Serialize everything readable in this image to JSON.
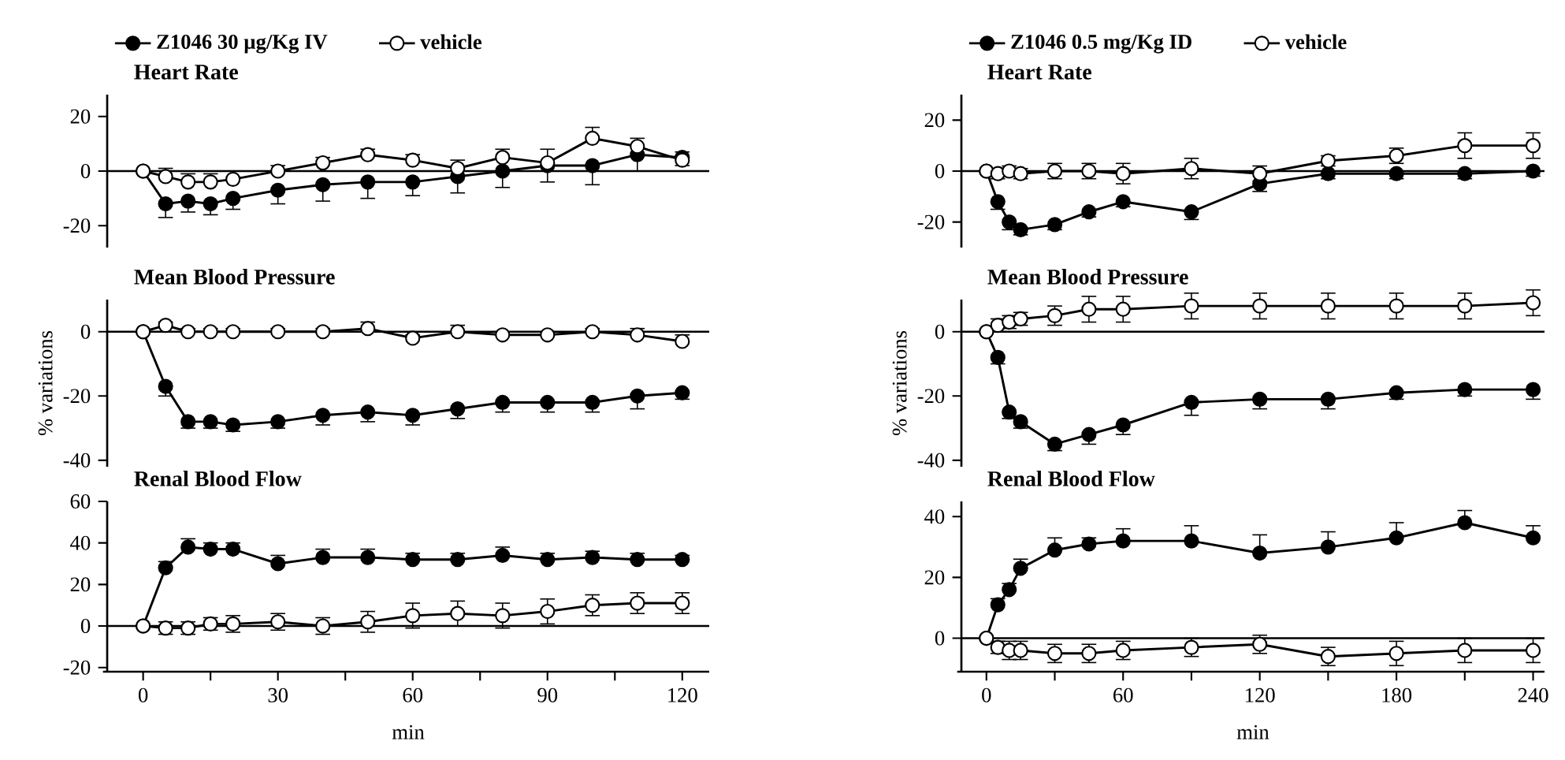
{
  "chart_data": [
    {
      "type": "line",
      "title": "Heart Rate",
      "x": [
        0,
        5,
        10,
        15,
        20,
        30,
        40,
        50,
        60,
        70,
        80,
        90,
        100,
        110,
        120
      ],
      "xlim": [
        -8,
        126
      ],
      "ylim": [
        -28,
        28
      ],
      "yticks": [
        -20,
        0,
        20
      ],
      "tick_labels": "y",
      "marker": "circle",
      "legend": "top",
      "ref_lines": [
        {
          "axis": "y",
          "value": 0
        }
      ],
      "series": [
        {
          "name": "Z1046 30 µg/Kg IV",
          "color": "#000000",
          "values": [
            0,
            -12,
            -11,
            -12,
            -10,
            -7,
            -5,
            -4,
            -4,
            -2,
            0,
            2,
            2,
            6,
            5
          ],
          "errors": [
            null,
            [
              -17,
              -12
            ],
            [
              -15,
              -11
            ],
            [
              -16,
              -12
            ],
            [
              -14,
              -10
            ],
            [
              -12,
              -7
            ],
            [
              -11,
              -5
            ],
            [
              -10,
              -4
            ],
            [
              -9,
              -4
            ],
            [
              -8,
              -2
            ],
            [
              -6,
              0
            ],
            [
              -4,
              2
            ],
            [
              -5,
              2
            ],
            [
              0,
              6
            ],
            [
              2,
              5
            ]
          ]
        },
        {
          "name": "vehicle",
          "color": "#ffffff",
          "values": [
            0,
            -2,
            -4,
            -4,
            -3,
            0,
            3,
            6,
            4,
            1,
            5,
            3,
            12,
            9,
            4
          ],
          "errors": [
            null,
            [
              -2,
              1
            ],
            [
              -4,
              -1
            ],
            [
              -4,
              -1
            ],
            [
              -3,
              0
            ],
            [
              0,
              2
            ],
            [
              3,
              5
            ],
            [
              6,
              8
            ],
            [
              4,
              6
            ],
            [
              1,
              4
            ],
            [
              5,
              8
            ],
            [
              3,
              8
            ],
            [
              12,
              16
            ],
            [
              9,
              12
            ],
            [
              4,
              7
            ]
          ]
        }
      ]
    },
    {
      "type": "line",
      "title": "Mean Blood Pressure",
      "ylabel": "% variations",
      "x": [
        0,
        5,
        10,
        15,
        20,
        30,
        40,
        50,
        60,
        70,
        80,
        90,
        100,
        110,
        120
      ],
      "xlim": [
        -8,
        126
      ],
      "ylim": [
        -42,
        10
      ],
      "yticks": [
        -40,
        -20,
        0
      ],
      "tick_labels": "y",
      "marker": "circle",
      "ref_lines": [
        {
          "axis": "y",
          "value": 0
        }
      ],
      "series": [
        {
          "color": "#000000",
          "values": [
            0,
            -17,
            -28,
            -28,
            -29,
            -28,
            -26,
            -25,
            -26,
            -24,
            -22,
            -22,
            -22,
            -20,
            -19
          ],
          "errors": [
            null,
            [
              -20,
              -17
            ],
            [
              -30,
              -28
            ],
            [
              -30,
              -28
            ],
            [
              -31,
              -29
            ],
            [
              -30,
              -28
            ],
            [
              -29,
              -26
            ],
            [
              -28,
              -25
            ],
            [
              -29,
              -26
            ],
            [
              -27,
              -24
            ],
            [
              -25,
              -22
            ],
            [
              -25,
              -22
            ],
            [
              -25,
              -22
            ],
            [
              -24,
              -20
            ],
            [
              -21,
              -19
            ]
          ]
        },
        {
          "color": "#ffffff",
          "values": [
            0,
            2,
            0,
            0,
            0,
            0,
            0,
            1,
            -2,
            0,
            -1,
            -1,
            0,
            -1,
            -3
          ],
          "errors": [
            null,
            [
              2,
              3
            ],
            [
              0,
              1
            ],
            [
              0,
              1
            ],
            [
              0,
              1
            ],
            [
              0,
              1
            ],
            [
              0,
              1
            ],
            [
              1,
              3
            ],
            [
              -2,
              -1
            ],
            [
              0,
              2
            ],
            [
              -1,
              0
            ],
            [
              -1,
              0
            ],
            [
              0,
              1
            ],
            [
              -1,
              1
            ],
            [
              -3,
              -1
            ]
          ]
        }
      ]
    },
    {
      "type": "line",
      "title": "Renal Blood Flow",
      "xlabel": "min",
      "x": [
        0,
        5,
        10,
        15,
        20,
        30,
        40,
        50,
        60,
        70,
        80,
        90,
        100,
        110,
        120
      ],
      "xlim": [
        -8,
        126
      ],
      "ylim": [
        -22,
        60
      ],
      "yticks": [
        -20,
        0,
        20,
        40,
        60
      ],
      "xticks": [
        0,
        {
          "value": 15,
          "label": null
        },
        30,
        {
          "value": 45,
          "label": null
        },
        60,
        {
          "value": 75,
          "label": null
        },
        90,
        {
          "value": 105,
          "label": null
        },
        120
      ],
      "marker": "circle",
      "ref_lines": [
        {
          "axis": "y",
          "value": 0
        }
      ],
      "series": [
        {
          "color": "#000000",
          "values": [
            0,
            28,
            38,
            37,
            37,
            30,
            33,
            33,
            32,
            32,
            34,
            32,
            33,
            32,
            32
          ],
          "errors": [
            null,
            [
              28,
              31
            ],
            [
              38,
              42
            ],
            [
              37,
              40
            ],
            [
              37,
              40
            ],
            [
              30,
              34
            ],
            [
              33,
              37
            ],
            [
              33,
              37
            ],
            [
              32,
              35
            ],
            [
              32,
              35
            ],
            [
              34,
              38
            ],
            [
              32,
              35
            ],
            [
              33,
              36
            ],
            [
              32,
              35
            ],
            [
              32,
              34
            ]
          ]
        },
        {
          "color": "#ffffff",
          "values": [
            0,
            -1,
            -1,
            1,
            1,
            2,
            0,
            2,
            5,
            6,
            5,
            7,
            10,
            11,
            11
          ],
          "errors": [
            null,
            [
              -4,
              2
            ],
            [
              -4,
              2
            ],
            [
              -2,
              4
            ],
            [
              -3,
              5
            ],
            [
              -2,
              6
            ],
            [
              -4,
              4
            ],
            [
              -3,
              7
            ],
            [
              -1,
              11
            ],
            [
              0,
              12
            ],
            [
              -1,
              11
            ],
            [
              1,
              13
            ],
            [
              5,
              15
            ],
            [
              6,
              16
            ],
            [
              6,
              16
            ]
          ]
        }
      ]
    },
    {
      "type": "line",
      "title": "Heart Rate",
      "x": [
        0,
        5,
        10,
        15,
        30,
        45,
        60,
        90,
        120,
        150,
        180,
        210,
        240
      ],
      "xlim": [
        -11,
        245
      ],
      "ylim": [
        -30,
        30
      ],
      "yticks": [
        -20,
        0,
        20
      ],
      "tick_labels": "y",
      "marker": "circle",
      "legend": "top",
      "ref_lines": [
        {
          "axis": "y",
          "value": 0
        }
      ],
      "series": [
        {
          "name": "Z1046 0.5 mg/Kg ID",
          "color": "#000000",
          "values": [
            0,
            -12,
            -20,
            -23,
            -21,
            -16,
            -12,
            -16,
            -5,
            -1,
            -1,
            -1,
            0
          ],
          "errors": [
            null,
            [
              -15,
              -12
            ],
            [
              -23,
              -20
            ],
            [
              -25,
              -23
            ],
            [
              -23,
              -21
            ],
            [
              -18,
              -16
            ],
            [
              -14,
              -12
            ],
            [
              -19,
              -16
            ],
            [
              -8,
              -5
            ],
            [
              -3,
              -1
            ],
            [
              -3,
              -1
            ],
            [
              -3,
              -1
            ],
            [
              -2,
              0
            ]
          ]
        },
        {
          "name": "vehicle",
          "color": "#ffffff",
          "values": [
            0,
            -1,
            0,
            -1,
            0,
            0,
            -1,
            1,
            -1,
            4,
            6,
            10,
            10
          ],
          "errors": [
            null,
            [
              -3,
              1
            ],
            [
              -2,
              2
            ],
            [
              -3,
              1
            ],
            [
              -3,
              3
            ],
            [
              -3,
              3
            ],
            [
              -5,
              3
            ],
            [
              -3,
              5
            ],
            [
              -4,
              2
            ],
            [
              2,
              6
            ],
            [
              3,
              9
            ],
            [
              5,
              15
            ],
            [
              5,
              15
            ]
          ]
        }
      ]
    },
    {
      "type": "line",
      "title": "Mean Blood Pressure",
      "ylabel": "% variations",
      "x": [
        0,
        5,
        10,
        15,
        30,
        45,
        60,
        90,
        120,
        150,
        180,
        210,
        240
      ],
      "xlim": [
        -11,
        245
      ],
      "ylim": [
        -42,
        10
      ],
      "yticks": [
        -40,
        -20,
        0
      ],
      "tick_labels": "y",
      "marker": "circle",
      "ref_lines": [
        {
          "axis": "y",
          "value": 0
        }
      ],
      "series": [
        {
          "color": "#000000",
          "values": [
            0,
            -8,
            -25,
            -28,
            -35,
            -32,
            -29,
            -22,
            -21,
            -21,
            -19,
            -18,
            -18
          ],
          "errors": [
            null,
            [
              -10,
              -8
            ],
            [
              -27,
              -25
            ],
            [
              -30,
              -28
            ],
            [
              -37,
              -35
            ],
            [
              -35,
              -32
            ],
            [
              -32,
              -29
            ],
            [
              -26,
              -22
            ],
            [
              -24,
              -21
            ],
            [
              -24,
              -21
            ],
            [
              -21,
              -19
            ],
            [
              -20,
              -18
            ],
            [
              -21,
              -18
            ]
          ]
        },
        {
          "color": "#ffffff",
          "values": [
            0,
            2,
            3,
            4,
            5,
            7,
            7,
            8,
            8,
            8,
            8,
            8,
            9
          ],
          "errors": [
            null,
            [
              0,
              4
            ],
            [
              1,
              5
            ],
            [
              2,
              6
            ],
            [
              2,
              8
            ],
            [
              3,
              11
            ],
            [
              3,
              11
            ],
            [
              4,
              12
            ],
            [
              4,
              12
            ],
            [
              4,
              12
            ],
            [
              4,
              12
            ],
            [
              4,
              12
            ],
            [
              5,
              13
            ]
          ]
        }
      ]
    },
    {
      "type": "line",
      "title": "Renal Blood Flow",
      "xlabel": "min",
      "x": [
        0,
        5,
        10,
        15,
        30,
        45,
        60,
        90,
        120,
        150,
        180,
        210,
        240
      ],
      "xlim": [
        -11,
        245
      ],
      "ylim": [
        -11,
        45
      ],
      "yticks": [
        0,
        20,
        40
      ],
      "xticks": [
        0,
        {
          "value": 30,
          "label": null
        },
        60,
        {
          "value": 90,
          "label": null
        },
        120,
        {
          "value": 150,
          "label": null
        },
        180,
        {
          "value": 210,
          "label": null
        },
        240
      ],
      "marker": "circle",
      "ref_lines": [
        {
          "axis": "y",
          "value": 0
        }
      ],
      "series": [
        {
          "color": "#000000",
          "values": [
            0,
            11,
            16,
            23,
            29,
            31,
            32,
            32,
            28,
            30,
            33,
            38,
            33
          ],
          "errors": [
            null,
            [
              11,
              13
            ],
            [
              16,
              18
            ],
            [
              23,
              26
            ],
            [
              29,
              33
            ],
            [
              31,
              33
            ],
            [
              32,
              36
            ],
            [
              32,
              37
            ],
            [
              28,
              34
            ],
            [
              30,
              35
            ],
            [
              33,
              38
            ],
            [
              38,
              42
            ],
            [
              33,
              37
            ]
          ]
        },
        {
          "color": "#ffffff",
          "values": [
            0,
            -3,
            -4,
            -4,
            -5,
            -5,
            -4,
            -3,
            -2,
            -6,
            -5,
            -4,
            -4
          ],
          "errors": [
            null,
            [
              -5,
              -1
            ],
            [
              -7,
              -1
            ],
            [
              -7,
              -1
            ],
            [
              -8,
              -2
            ],
            [
              -8,
              -2
            ],
            [
              -7,
              -1
            ],
            [
              -6,
              0
            ],
            [
              -5,
              1
            ],
            [
              -9,
              -3
            ],
            [
              -9,
              -1
            ],
            [
              -8,
              0
            ],
            [
              -8,
              0
            ]
          ]
        }
      ]
    }
  ]
}
